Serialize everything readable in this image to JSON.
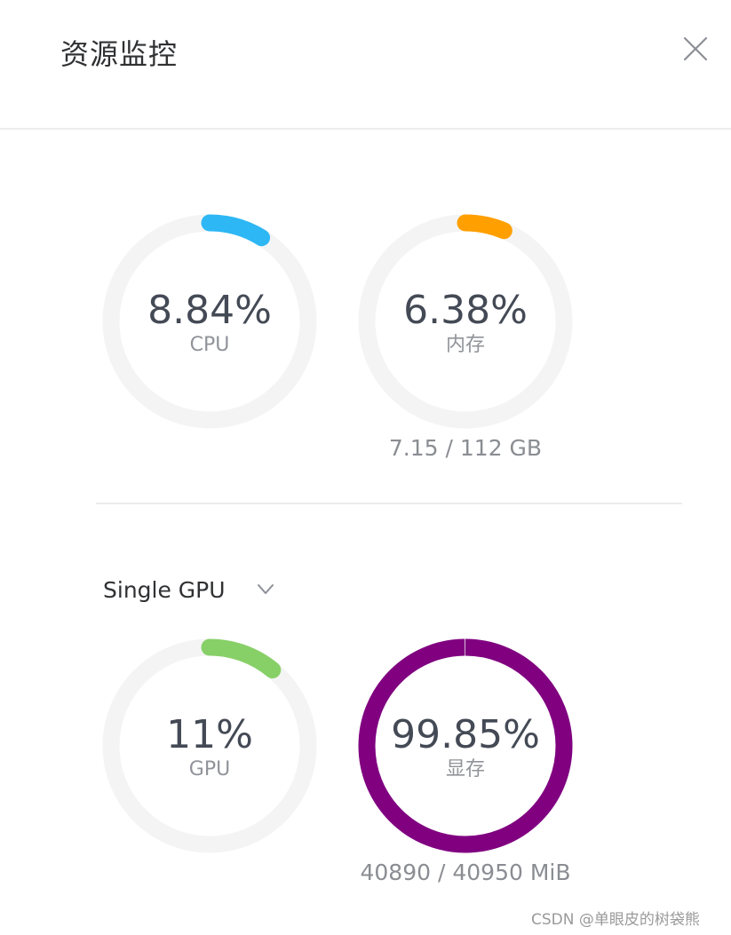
{
  "header": {
    "title": "资源监控",
    "close_icon": "close-icon"
  },
  "gauges": {
    "cpu": {
      "value_text": "8.84%",
      "label": "CPU",
      "fraction": 0.0884,
      "color": "#2db7f5"
    },
    "memory": {
      "value_text": "6.38%",
      "label": "内存",
      "fraction": 0.0638,
      "color": "#ff9f00",
      "usage_text": "7.15 / 112 GB"
    },
    "gpu": {
      "value_text": "11%",
      "label": "GPU",
      "fraction": 0.11,
      "color": "#87d068"
    },
    "gpu_memory": {
      "value_text": "99.85%",
      "label": "显存",
      "fraction": 0.9985,
      "color": "#800080",
      "usage_text": "40890 / 40950 MiB"
    }
  },
  "gpu_selector": {
    "selected": "Single GPU",
    "icon": "chevron-down-icon"
  },
  "track_color": "#f4f4f4",
  "watermark": "CSDN @单眼皮的树袋熊"
}
